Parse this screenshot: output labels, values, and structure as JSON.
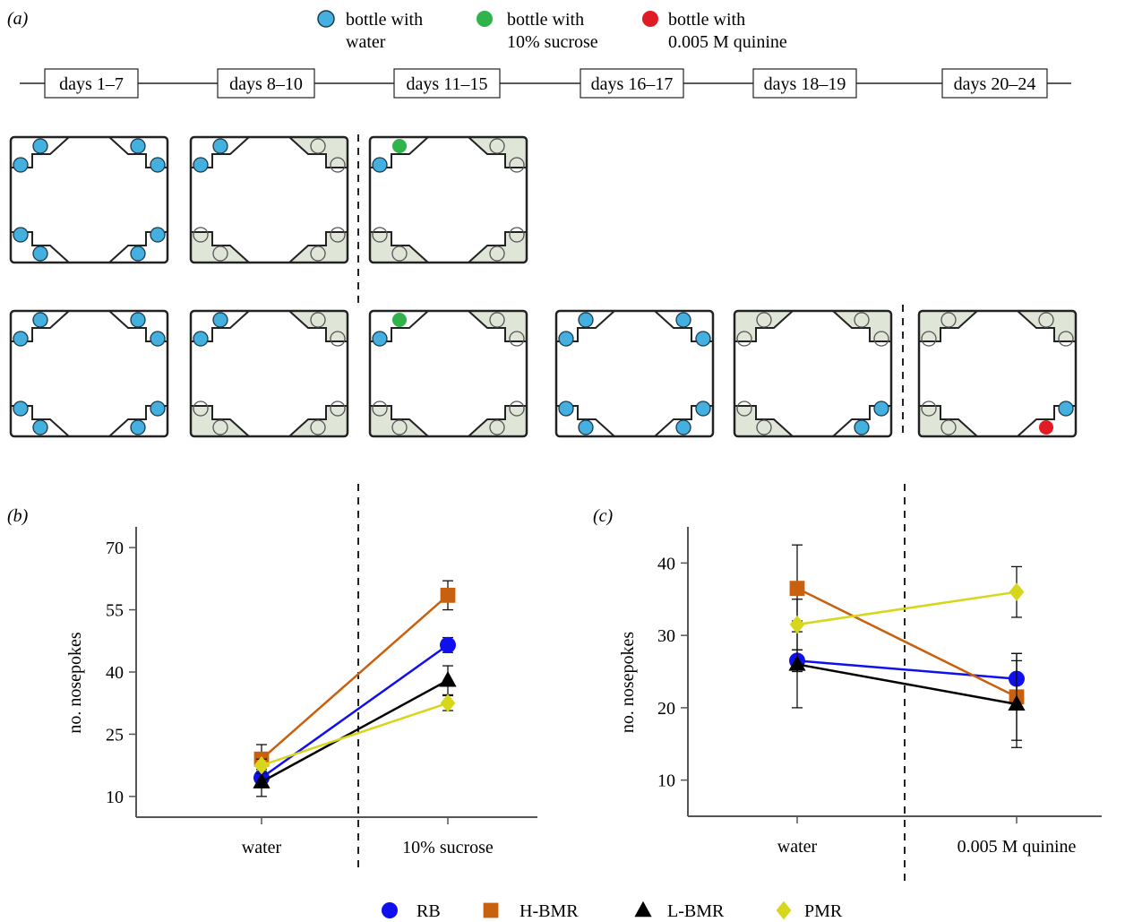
{
  "panel_labels": {
    "a": "(a)",
    "b": "(b)",
    "c": "(c)"
  },
  "bottle_legend": [
    {
      "line1": "bottle with",
      "line2": "water",
      "color": "#44b0e0"
    },
    {
      "line1": "bottle with",
      "line2": "10% sucrose",
      "color": "#2fb34a"
    },
    {
      "line1": "bottle with",
      "line2": "0.005 M quinine",
      "color": "#e01b24"
    }
  ],
  "timeline": [
    "days 1–7",
    "days 8–10",
    "days 11–15",
    "days 16–17",
    "days 18–19",
    "days 20–24"
  ],
  "colors": {
    "water": "#44b0e0",
    "sucrose": "#2fb34a",
    "quinine": "#e01b24",
    "inactive_fill": "#dfe6d7",
    "cage_stroke": "#222222"
  },
  "cage_rows": [
    [
      {
        "active_corners": [
          "TL",
          "TR",
          "BL",
          "BR"
        ],
        "special": null
      },
      {
        "active_corners": [
          "TL"
        ],
        "special": null
      },
      {
        "active_corners": [
          "TL"
        ],
        "special": {
          "corner": "TL",
          "slot": "top",
          "color": "sucrose"
        }
      }
    ],
    [
      {
        "active_corners": [
          "TL",
          "TR",
          "BL",
          "BR"
        ],
        "special": null
      },
      {
        "active_corners": [
          "TL"
        ],
        "special": null
      },
      {
        "active_corners": [
          "TL"
        ],
        "special": {
          "corner": "TL",
          "slot": "top",
          "color": "sucrose"
        }
      },
      {
        "active_corners": [
          "TL",
          "TR",
          "BL",
          "BR"
        ],
        "special": null
      },
      {
        "active_corners": [
          "BR"
        ],
        "special": null
      },
      {
        "active_corners": [
          "BR"
        ],
        "special": {
          "corner": "BR",
          "slot": "bottom",
          "color": "quinine"
        }
      }
    ]
  ],
  "series_legend": [
    {
      "name": "RB",
      "color": "#1010ee",
      "marker": "circle"
    },
    {
      "name": "H-BMR",
      "color": "#c9600e",
      "marker": "square"
    },
    {
      "name": "L-BMR",
      "color": "#000000",
      "marker": "triangle"
    },
    {
      "name": "PMR",
      "color": "#d6d61a",
      "marker": "diamond"
    }
  ],
  "chart_data": [
    {
      "type": "line",
      "panel": "b",
      "title": "",
      "xlabel": "",
      "ylabel": "no. nosepokes",
      "categories": [
        "water",
        "10% sucrose"
      ],
      "ylim": [
        5,
        75
      ],
      "yticks": [
        10,
        25,
        40,
        55,
        70
      ],
      "series": [
        {
          "name": "RB",
          "values": [
            14.5,
            46.5
          ],
          "errors": [
            2.0,
            1.8
          ]
        },
        {
          "name": "H-BMR",
          "values": [
            19.0,
            58.5
          ],
          "errors": [
            3.5,
            3.5
          ]
        },
        {
          "name": "L-BMR",
          "values": [
            13.5,
            38.0
          ],
          "errors": [
            3.5,
            3.5
          ]
        },
        {
          "name": "PMR",
          "values": [
            17.5,
            32.5
          ],
          "errors": [
            1.5,
            1.8
          ]
        }
      ]
    },
    {
      "type": "line",
      "panel": "c",
      "title": "",
      "xlabel": "",
      "ylabel": "no. nosepokes",
      "categories": [
        "water",
        "0.005 M quinine"
      ],
      "ylim": [
        5,
        45
      ],
      "yticks": [
        10,
        20,
        30,
        40
      ],
      "series": [
        {
          "name": "RB",
          "values": [
            26.5,
            24.0
          ],
          "errors": [
            1.5,
            3.5
          ]
        },
        {
          "name": "H-BMR",
          "values": [
            36.5,
            21.5
          ],
          "errors": [
            6.0,
            6.0
          ]
        },
        {
          "name": "L-BMR",
          "values": [
            26.0,
            20.5
          ],
          "errors": [
            6.0,
            6.0
          ]
        },
        {
          "name": "PMR",
          "values": [
            31.5,
            36.0
          ],
          "errors": [
            3.5,
            3.5
          ]
        }
      ]
    }
  ]
}
